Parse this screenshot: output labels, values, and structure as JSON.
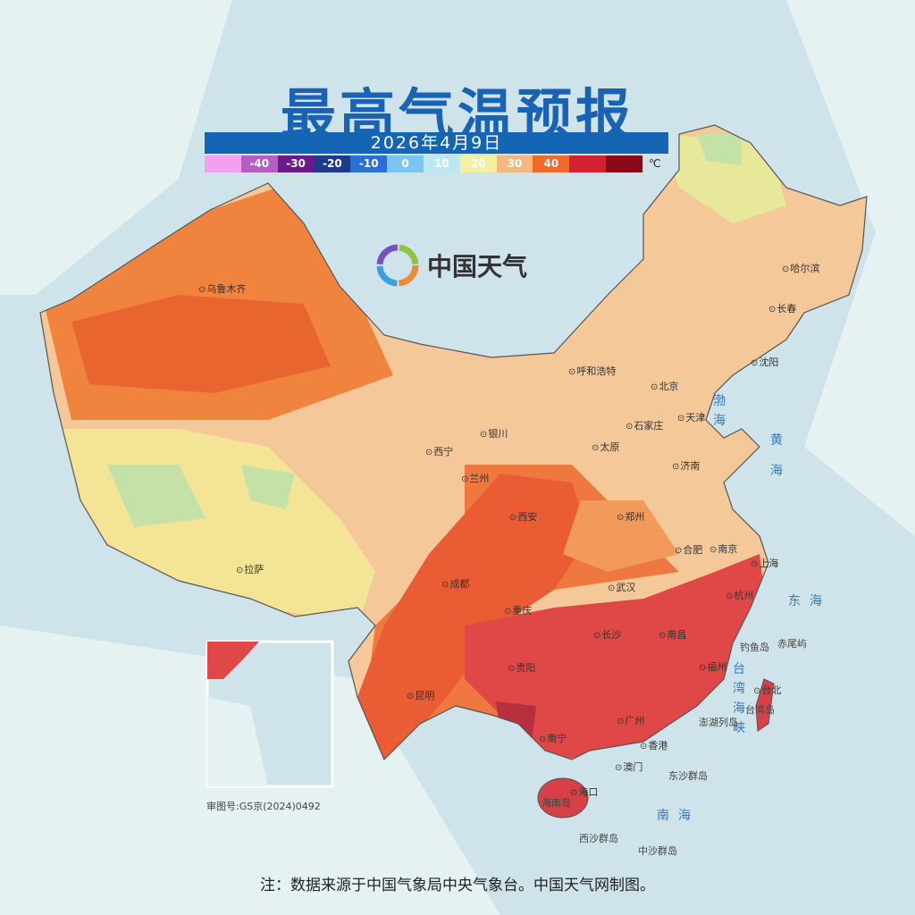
{
  "title": "最高气温预报",
  "date": "2026年4月9日",
  "legend": {
    "labels": [
      "",
      "-40",
      "-30",
      "-20",
      "-10",
      "0",
      "10",
      "20",
      "30",
      "40",
      ""
    ],
    "colors": [
      "#f4a0ee",
      "#b45ec0",
      "#6a1a8a",
      "#1e3a8a",
      "#2b6fd6",
      "#7cc4f4",
      "#bde8f0",
      "#f5f0a0",
      "#f5b880",
      "#f06a2a",
      "#d42030",
      "#8a0a1a"
    ],
    "unit": "℃"
  },
  "brand": "中国天气",
  "cities": [
    "乌鲁木齐",
    "哈尔滨",
    "长春",
    "沈阳",
    "呼和浩特",
    "北京",
    "天津",
    "石家庄",
    "太原",
    "济南",
    "银川",
    "西宁",
    "兰州",
    "西安",
    "郑州",
    "合肥",
    "南京",
    "上海",
    "杭州",
    "武汉",
    "成都",
    "重庆",
    "拉萨",
    "长沙",
    "南昌",
    "福州",
    "台北",
    "贵阳",
    "昆明",
    "南宁",
    "广州",
    "香港",
    "澳门",
    "海口"
  ],
  "seas": [
    "渤海",
    "黄海",
    "东海",
    "台湾海峡",
    "南海"
  ],
  "islands": [
    "钓鱼岛",
    "赤尾屿",
    "澎湖列岛",
    "台湾岛",
    "海南岛",
    "东沙群岛",
    "西沙群岛",
    "中沙群岛"
  ],
  "review_no": "审图号:GS京(2024)0492",
  "note": "注：数据来源于中国气象局中央气象台。中国天气网制图。"
}
